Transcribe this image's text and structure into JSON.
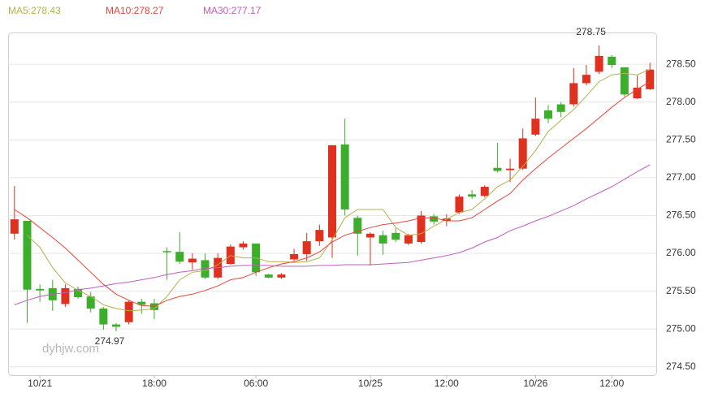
{
  "chart_data": {
    "type": "candlestick",
    "categories": [
      null,
      null,
      "10/21",
      null,
      null,
      null,
      null,
      null,
      null,
      null,
      null,
      "18:00",
      null,
      null,
      null,
      null,
      null,
      null,
      null,
      "06:00",
      null,
      null,
      null,
      null,
      null,
      null,
      null,
      null,
      "10/25",
      null,
      null,
      null,
      null,
      null,
      "12:00",
      null,
      null,
      null,
      null,
      null,
      null,
      "10/26",
      null,
      null,
      null,
      null,
      null,
      "12:00",
      null,
      null,
      null
    ],
    "open": [
      276.26,
      276.43,
      275.53,
      275.54,
      275.33,
      275.53,
      275.43,
      275.27,
      275.06,
      275.09,
      275.36,
      275.34,
      276.03,
      276.02,
      275.88,
      275.91,
      275.68,
      275.86,
      276.08,
      276.13,
      275.72,
      275.68,
      275.92,
      275.99,
      276.16,
      276.21,
      277.44,
      276.47,
      276.21,
      276.24,
      276.27,
      276.13,
      276.15,
      276.49,
      276.43,
      276.54,
      276.78,
      276.76,
      277.13,
      277.1,
      277.12,
      277.57,
      277.89,
      277.97,
      277.97,
      278.25,
      278.4,
      278.6,
      278.46,
      278.05,
      278.17
    ],
    "high": [
      276.89,
      276.43,
      275.59,
      275.65,
      275.59,
      275.56,
      275.49,
      275.29,
      275.08,
      275.38,
      275.4,
      275.4,
      276.08,
      276.28,
      276.0,
      276.0,
      276.0,
      276.12,
      276.16,
      276.13,
      275.73,
      275.74,
      276.06,
      276.27,
      276.38,
      277.43,
      277.78,
      276.5,
      276.28,
      276.3,
      276.33,
      276.26,
      276.56,
      276.52,
      276.52,
      276.78,
      276.84,
      276.9,
      277.46,
      277.25,
      277.65,
      278.06,
      277.96,
      278.0,
      278.45,
      278.49,
      278.75,
      278.62,
      278.46,
      278.35,
      278.52
    ],
    "low": [
      276.18,
      275.08,
      275.36,
      275.24,
      275.29,
      275.4,
      275.22,
      274.99,
      274.97,
      275.06,
      275.2,
      275.13,
      275.65,
      275.86,
      275.78,
      275.66,
      275.66,
      275.85,
      276.05,
      275.7,
      275.67,
      275.66,
      275.9,
      275.9,
      276.1,
      275.94,
      276.5,
      275.97,
      275.84,
      275.98,
      276.15,
      276.11,
      276.13,
      276.38,
      276.36,
      276.52,
      276.72,
      276.74,
      277.07,
      276.94,
      277.1,
      277.55,
      277.72,
      277.8,
      277.94,
      278.22,
      278.37,
      278.45,
      278.07,
      278.04,
      278.16
    ],
    "close": [
      276.45,
      275.52,
      275.51,
      275.38,
      275.54,
      275.42,
      275.27,
      275.06,
      275.03,
      275.36,
      275.32,
      275.25,
      276.02,
      275.89,
      275.93,
      275.68,
      275.94,
      276.09,
      276.13,
      275.75,
      275.68,
      275.72,
      275.99,
      276.16,
      276.31,
      277.43,
      276.58,
      276.26,
      276.26,
      276.13,
      276.18,
      276.24,
      276.5,
      276.42,
      276.46,
      276.75,
      276.75,
      276.88,
      277.09,
      277.12,
      277.52,
      277.78,
      277.78,
      277.87,
      278.25,
      278.36,
      278.61,
      278.49,
      278.1,
      278.19,
      278.43
    ],
    "up_color": "#e0301e",
    "down_color": "#3cae2c",
    "series": [
      {
        "name": "MA5:278.43",
        "color": "#b5b04a",
        "values": [
          null,
          276.24,
          276.08,
          275.81,
          275.61,
          275.51,
          275.43,
          275.32,
          275.27,
          275.24,
          275.25,
          275.27,
          275.43,
          275.65,
          275.75,
          275.77,
          275.85,
          275.97,
          275.94,
          275.94,
          275.89,
          275.89,
          275.88,
          275.89,
          275.94,
          276.18,
          276.47,
          276.58,
          276.58,
          276.58,
          276.34,
          276.24,
          276.26,
          276.36,
          276.45,
          276.54,
          276.58,
          276.72,
          276.88,
          276.97,
          277.15,
          277.36,
          277.61,
          277.76,
          277.9,
          278.08,
          278.27,
          278.36,
          278.38,
          278.36,
          278.43
        ]
      },
      {
        "name": "MA10:278.27",
        "color": "#e8443a",
        "values": [
          276.58,
          276.47,
          276.34,
          276.21,
          276.07,
          275.91,
          275.75,
          275.59,
          275.46,
          275.38,
          275.31,
          275.3,
          275.38,
          275.43,
          275.46,
          275.51,
          275.57,
          275.65,
          275.68,
          275.75,
          275.81,
          275.86,
          275.89,
          275.94,
          276.02,
          276.15,
          276.24,
          276.29,
          276.34,
          276.38,
          276.4,
          276.43,
          276.47,
          276.47,
          276.43,
          276.43,
          276.47,
          276.58,
          276.69,
          276.79,
          276.97,
          277.12,
          277.26,
          277.39,
          277.52,
          277.65,
          277.79,
          277.93,
          278.06,
          278.17,
          278.27
        ]
      },
      {
        "name": "MA30:277.17",
        "color": "#c05cc2",
        "values": [
          275.32,
          275.38,
          275.43,
          275.46,
          275.48,
          275.52,
          275.54,
          275.57,
          275.6,
          275.62,
          275.65,
          275.68,
          275.72,
          275.75,
          275.77,
          275.8,
          275.81,
          275.83,
          275.84,
          275.84,
          275.84,
          275.83,
          275.83,
          275.83,
          275.84,
          275.84,
          275.85,
          275.85,
          275.85,
          275.86,
          275.87,
          275.88,
          275.91,
          275.94,
          275.97,
          276.01,
          276.07,
          276.15,
          276.21,
          276.3,
          276.36,
          276.43,
          276.49,
          276.56,
          276.63,
          276.72,
          276.8,
          276.88,
          276.98,
          277.08,
          277.17
        ]
      }
    ],
    "annotations": [
      278.75,
      274.97
    ],
    "watermark": "dyhjw.com",
    "ylim": [
      274.39,
      278.92
    ],
    "yticks": [
      {
        "value": 274.5,
        "label": "274.50"
      },
      {
        "value": 275,
        "label": "275.00"
      },
      {
        "value": 275.5,
        "label": "275.50"
      },
      {
        "value": 276,
        "label": "276.00"
      },
      {
        "value": 276.5,
        "label": "276.50"
      },
      {
        "value": 277,
        "label": "277.00"
      },
      {
        "value": 277.5,
        "label": "277.50"
      },
      {
        "value": 278,
        "label": "278.00"
      },
      {
        "value": 278.5,
        "label": "278.50"
      }
    ],
    "grid": true
  }
}
